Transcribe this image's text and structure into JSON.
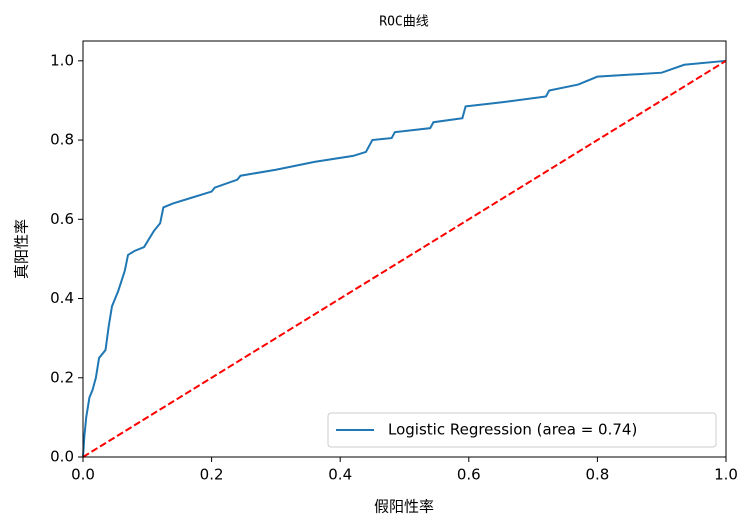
{
  "chart_data": {
    "type": "line",
    "title": "ROC曲线",
    "xlabel": "假阳性率",
    "ylabel": "真阳性率",
    "xlim": [
      0,
      1
    ],
    "ylim": [
      0,
      1.05
    ],
    "xticks": [
      {
        "value": 0,
        "label": "0.0"
      },
      0.2,
      0.4,
      0.6,
      0.8,
      {
        "value": 1,
        "label": "1.0"
      }
    ],
    "yticks": [
      {
        "value": 0,
        "label": "0.0"
      },
      0.2,
      0.4,
      0.6,
      0.8,
      {
        "value": 1,
        "label": "1.0"
      }
    ],
    "legend": "lower right",
    "series": [
      {
        "name": "Logistic Regression (area = 0.74)",
        "color": "#1f77b4",
        "linestyle": "solid",
        "x": [
          0,
          0.002,
          0.005,
          0.01,
          0.015,
          0.02,
          0.025,
          0.035,
          0.04,
          0.045,
          0.055,
          0.065,
          0.07,
          0.08,
          0.095,
          0.11,
          0.12,
          0.125,
          0.14,
          0.17,
          0.2,
          0.205,
          0.24,
          0.245,
          0.3,
          0.36,
          0.42,
          0.44,
          0.45,
          0.48,
          0.485,
          0.54,
          0.545,
          0.59,
          0.595,
          0.65,
          0.72,
          0.725,
          0.77,
          0.8,
          0.9,
          0.935,
          1
        ],
        "values": [
          0,
          0.05,
          0.1,
          0.15,
          0.17,
          0.2,
          0.25,
          0.27,
          0.33,
          0.38,
          0.42,
          0.47,
          0.51,
          0.52,
          0.53,
          0.57,
          0.59,
          0.63,
          0.64,
          0.655,
          0.67,
          0.68,
          0.7,
          0.71,
          0.725,
          0.745,
          0.76,
          0.77,
          0.8,
          0.805,
          0.82,
          0.83,
          0.845,
          0.855,
          0.885,
          0.895,
          0.91,
          0.925,
          0.94,
          0.96,
          0.97,
          0.99,
          1
        ]
      },
      {
        "color": "#ff0000",
        "linestyle": "dashed",
        "x": [
          0,
          1
        ],
        "values": [
          0,
          1
        ]
      }
    ]
  }
}
